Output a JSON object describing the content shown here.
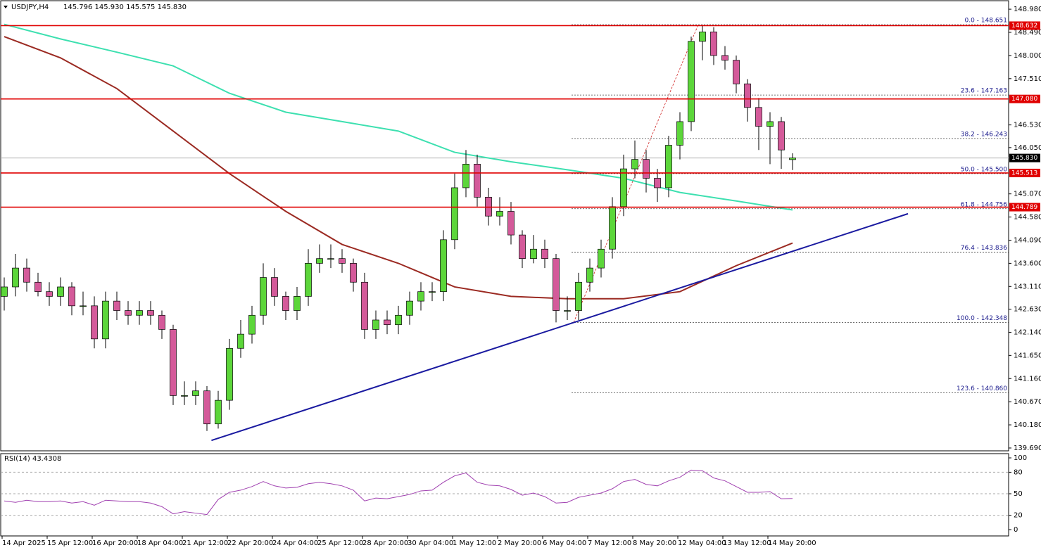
{
  "chart_data": {
    "type": "candlestick",
    "symbol": "USDJPY,H4",
    "ohlc_text": "145.796 145.930 145.575 145.830",
    "time_labels": [
      "14 Apr 2025",
      "15 Apr 12:00",
      "16 Apr 20:00",
      "18 Apr 04:00",
      "21 Apr 12:00",
      "22 Apr 20:00",
      "24 Apr 04:00",
      "25 Apr 12:00",
      "28 Apr 20:00",
      "30 Apr 04:00",
      "1 May 12:00",
      "2 May 20:00",
      "6 May 04:00",
      "7 May 12:00",
      "8 May 20:00",
      "12 May 04:00",
      "13 May 12:00",
      "14 May 20:00"
    ],
    "open": [
      142.9,
      143.1,
      143.5,
      143.2,
      143.0,
      142.9,
      143.1,
      142.7,
      142.7,
      142.0,
      142.8,
      142.6,
      142.5,
      142.6,
      142.5,
      142.2,
      140.8,
      140.8,
      140.9,
      140.2,
      140.7,
      141.8,
      142.1,
      142.5,
      143.3,
      142.9,
      142.6,
      142.9,
      143.6,
      143.7,
      143.7,
      143.6,
      143.2,
      142.2,
      142.4,
      142.3,
      142.5,
      142.8,
      143.0,
      143.0,
      144.1,
      145.2,
      145.7,
      145.0,
      144.6,
      144.7,
      144.2,
      143.7,
      143.9,
      143.7,
      142.6,
      142.6,
      143.2,
      143.5,
      143.9,
      144.8,
      145.6,
      145.8,
      145.4,
      145.2,
      146.1,
      146.6,
      148.3,
      148.5,
      148.0,
      147.9,
      147.4,
      146.9,
      146.5,
      146.6,
      145.796
    ],
    "high": [
      143.3,
      143.8,
      143.7,
      143.4,
      143.2,
      143.3,
      143.2,
      143.0,
      142.9,
      143.0,
      143.0,
      142.8,
      142.8,
      142.8,
      142.6,
      142.3,
      141.1,
      141.1,
      141.0,
      140.9,
      142.0,
      142.4,
      142.7,
      143.6,
      143.5,
      143.0,
      143.1,
      143.9,
      144.0,
      144.0,
      143.9,
      143.7,
      143.4,
      142.6,
      142.6,
      142.7,
      143.0,
      143.2,
      143.2,
      144.3,
      145.5,
      146.0,
      145.9,
      145.2,
      145.0,
      144.9,
      144.3,
      144.2,
      144.1,
      143.8,
      142.9,
      143.4,
      143.7,
      144.1,
      145.0,
      145.9,
      146.2,
      146.0,
      145.6,
      146.3,
      146.8,
      148.4,
      148.65,
      148.6,
      148.2,
      148.0,
      147.5,
      147.1,
      146.8,
      146.7,
      145.93
    ],
    "low": [
      142.6,
      142.9,
      143.0,
      142.9,
      142.7,
      142.7,
      142.5,
      142.5,
      141.8,
      141.8,
      142.4,
      142.3,
      142.3,
      142.3,
      142.0,
      140.6,
      140.6,
      140.6,
      140.05,
      140.1,
      140.5,
      141.6,
      141.9,
      142.3,
      142.7,
      142.4,
      142.4,
      142.7,
      143.4,
      143.5,
      143.4,
      143.0,
      142.0,
      142.0,
      142.1,
      142.1,
      142.3,
      142.6,
      142.8,
      142.8,
      143.9,
      145.0,
      144.8,
      144.4,
      144.4,
      144.0,
      143.5,
      143.6,
      143.5,
      142.35,
      142.4,
      142.4,
      143.0,
      143.3,
      143.7,
      144.6,
      145.4,
      145.1,
      144.9,
      145.0,
      145.8,
      146.4,
      147.9,
      147.8,
      147.7,
      147.2,
      146.6,
      146.0,
      145.7,
      145.6,
      145.575
    ],
    "close": [
      143.1,
      143.5,
      143.2,
      143.0,
      142.9,
      143.1,
      142.7,
      142.7,
      142.0,
      142.8,
      142.6,
      142.5,
      142.6,
      142.5,
      142.2,
      140.8,
      140.8,
      140.9,
      140.2,
      140.7,
      141.8,
      142.1,
      142.5,
      143.3,
      142.9,
      142.6,
      142.9,
      143.6,
      143.7,
      143.7,
      143.6,
      143.2,
      142.2,
      142.4,
      142.3,
      142.5,
      142.8,
      143.0,
      143.0,
      144.1,
      145.2,
      145.7,
      145.0,
      144.6,
      144.7,
      144.2,
      143.7,
      143.9,
      143.7,
      142.6,
      142.6,
      143.2,
      143.5,
      143.9,
      144.8,
      145.6,
      145.8,
      145.4,
      145.2,
      146.1,
      146.6,
      148.3,
      148.5,
      148.0,
      147.9,
      147.4,
      146.9,
      146.5,
      146.6,
      146.0,
      145.83
    ],
    "colors": {
      "up": "#5cd63a",
      "down": "#d45a9a"
    },
    "ylim": [
      139.63,
      149.16
    ],
    "yticks": [
      {
        "value": 148.98,
        "label": "148.980"
      },
      {
        "value": 148.49,
        "label": "148.490"
      },
      {
        "value": 148.0,
        "label": "148.000"
      },
      {
        "value": 147.51,
        "label": "147.510"
      },
      {
        "value": 146.53,
        "label": "146.530"
      },
      {
        "value": 146.05,
        "label": "146.050"
      },
      {
        "value": 145.07,
        "label": "145.070"
      },
      {
        "value": 144.58,
        "label": "144.580"
      },
      {
        "value": 144.09,
        "label": "144.090"
      },
      {
        "value": 143.6,
        "label": "143.600"
      },
      {
        "value": 143.11,
        "label": "143.110"
      },
      {
        "value": 142.63,
        "label": "142.630"
      },
      {
        "value": 142.14,
        "label": "142.140"
      },
      {
        "value": 141.65,
        "label": "141.650"
      },
      {
        "value": 141.16,
        "label": "141.160"
      },
      {
        "value": 140.67,
        "label": "140.670"
      },
      {
        "value": 140.18,
        "label": "140.180"
      },
      {
        "value": 139.69,
        "label": "139.690"
      }
    ],
    "moving_averages": [
      {
        "color": "#3de0b0",
        "x_index": [
          0,
          5,
          10,
          15,
          20,
          25,
          30,
          35,
          40,
          45,
          50,
          55,
          60,
          65,
          70
        ],
        "values": [
          148.66,
          148.35,
          148.07,
          147.78,
          147.2,
          146.8,
          146.6,
          146.4,
          145.95,
          145.75,
          145.58,
          145.4,
          145.1,
          144.92,
          144.73
        ]
      },
      {
        "color": "#9b2a22",
        "x_index": [
          0,
          5,
          10,
          15,
          20,
          25,
          30,
          35,
          40,
          45,
          50,
          55,
          60,
          65,
          70
        ],
        "values": [
          148.4,
          147.95,
          147.3,
          146.4,
          145.5,
          144.7,
          144.0,
          143.6,
          143.1,
          142.9,
          142.85,
          142.85,
          143.0,
          143.55,
          144.03
        ]
      }
    ],
    "trendline": {
      "color": "#1a1aa0",
      "x_index": [
        18.4,
        80.25
      ],
      "values": [
        139.85,
        144.65
      ]
    },
    "fib_levels": [
      {
        "label": "0.0 - 148.651",
        "value": 148.651
      },
      {
        "label": "23.6 - 147.163",
        "value": 147.163
      },
      {
        "label": "38.2 - 146.243",
        "value": 146.243
      },
      {
        "label": "50.0 - 145.500",
        "value": 145.5
      },
      {
        "label": "61.8 - 144.756",
        "value": 144.756
      },
      {
        "label": "76.4 - 143.836",
        "value": 143.836
      },
      {
        "label": "100.0 - 142.348",
        "value": 142.348
      },
      {
        "label": "123.6 - 140.860",
        "value": 140.86
      }
    ],
    "levels": [
      {
        "label": "148.632",
        "value": 148.632
      },
      {
        "label": "147.080",
        "value": 147.08
      },
      {
        "label": "145.513",
        "value": 145.513
      },
      {
        "label": "144.789",
        "value": 144.789
      }
    ],
    "level_color": "#e00000",
    "last_price": {
      "label": "145.830",
      "value": 145.83
    },
    "rsi": {
      "title": "RSI(14) 43.4308",
      "color": "#a040b0",
      "ylim": [
        -8.8,
        105.9
      ],
      "yticks": [
        100,
        80,
        50,
        20,
        0
      ],
      "dashed_levels": [
        80,
        50,
        20
      ],
      "values": [
        40,
        38,
        41,
        39,
        39,
        40,
        37,
        39,
        34,
        41,
        40,
        39,
        39,
        37,
        32,
        22,
        25,
        23,
        21,
        42,
        52,
        55,
        60,
        67,
        61,
        58,
        59,
        64,
        66,
        64,
        61,
        55,
        40,
        44,
        43,
        46,
        49,
        54,
        55,
        66,
        75,
        79,
        66,
        62,
        61,
        56,
        48,
        51,
        46,
        37,
        38,
        45,
        48,
        51,
        57,
        67,
        70,
        63,
        61,
        68,
        73,
        83,
        82,
        72,
        68,
        60,
        52,
        52,
        53,
        43,
        43.4308
      ]
    }
  }
}
